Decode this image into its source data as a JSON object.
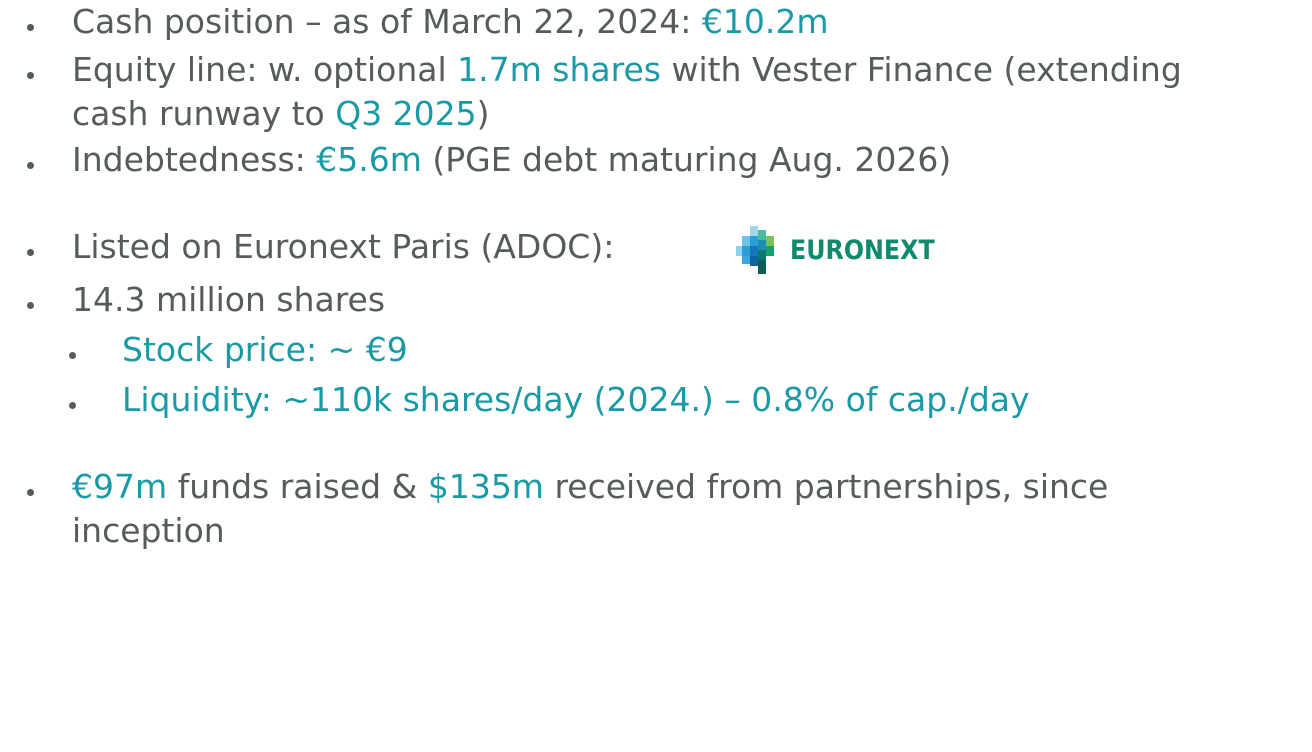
{
  "bullets": [
    {
      "level": 1,
      "lines": [
        [
          {
            "text": "Cash position – as of March 22, 2024: "
          },
          {
            "text": "€10.2m",
            "accent": true
          }
        ]
      ]
    },
    {
      "level": 1,
      "lines": [
        [
          {
            "text": "Equity line: w. optional "
          },
          {
            "text": "1.7m shares",
            "accent": true
          },
          {
            "text": " with Vester Finance (extending"
          }
        ],
        [
          {
            "text": "cash runway to "
          },
          {
            "text": "Q3 2025",
            "accent": true
          },
          {
            "text": ")"
          }
        ]
      ]
    },
    {
      "level": 1,
      "lines": [
        [
          {
            "text": "Indebtedness: "
          },
          {
            "text": "€5.6m",
            "accent": true
          },
          {
            "text": " (PGE debt maturing Aug. 2026)"
          }
        ]
      ]
    },
    {
      "level": 1,
      "lines": [
        [
          {
            "text": "Listed on Euronext Paris (ADOC):"
          }
        ]
      ]
    },
    {
      "level": 1,
      "lines": [
        [
          {
            "text": "14.3 million shares"
          }
        ]
      ]
    },
    {
      "level": 2,
      "lines": [
        [
          {
            "text": "Stock price: ~ €9",
            "accent": true
          }
        ]
      ]
    },
    {
      "level": 2,
      "lines": [
        [
          {
            "text": "Liquidity: ~110k shares/day (2024.) – 0.8% of cap./day",
            "accent": true
          }
        ]
      ]
    },
    {
      "level": 1,
      "lines": [
        [
          {
            "text": "€97m",
            "accent": true
          },
          {
            "text": " funds raised & "
          },
          {
            "text": "$135m",
            "accent": true
          },
          {
            "text": " received from partnerships, since"
          }
        ],
        [
          {
            "text": "inception"
          }
        ]
      ]
    }
  ],
  "logo": {
    "text": "EURONEXT"
  }
}
